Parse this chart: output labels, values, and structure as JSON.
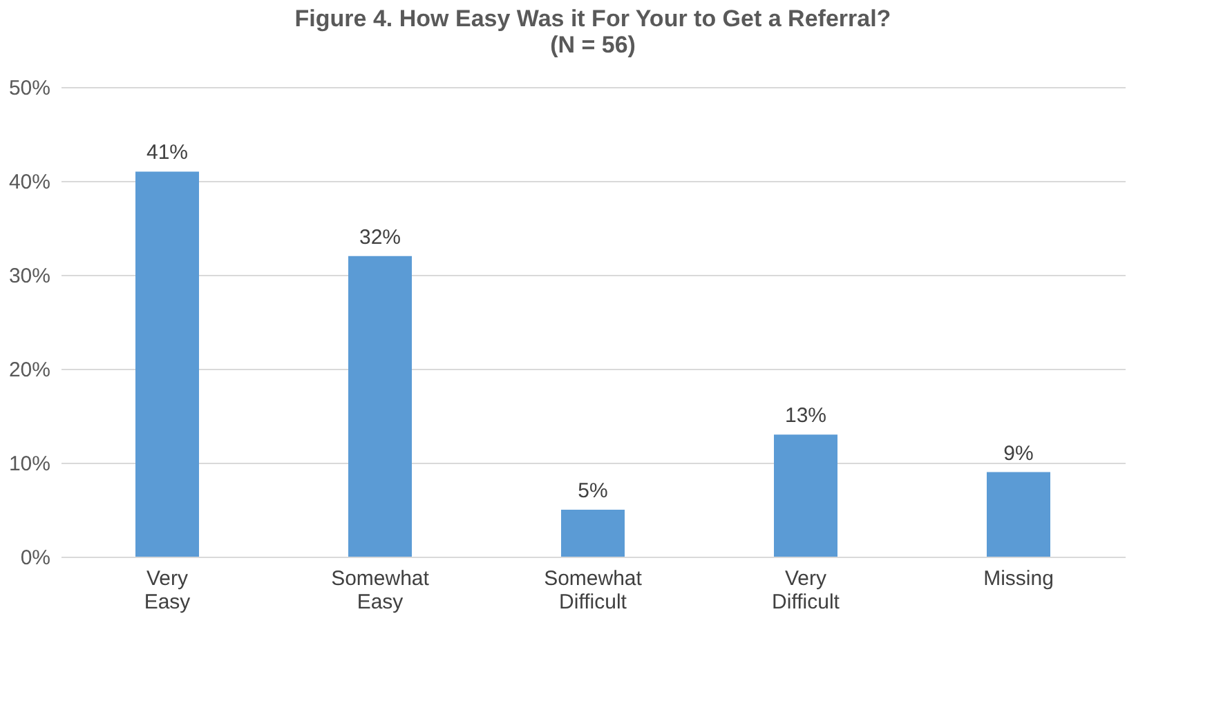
{
  "chart_data": {
    "type": "bar",
    "title": "Figure 4. How Easy Was it For Your to Get a Referral?\n(N = 56)",
    "categories": [
      "Very Easy",
      "Somewhat Easy",
      "Somewhat Difficult",
      "Very Difficult",
      "Missing"
    ],
    "values": [
      41,
      32,
      5,
      13,
      9
    ],
    "value_labels": [
      "41%",
      "32%",
      "5%",
      "13%",
      "9%"
    ],
    "color": "#5b9bd5",
    "ylim": [
      0,
      50
    ],
    "yticks": [
      {
        "value": 0,
        "label": "0%"
      },
      {
        "value": 10,
        "label": "10%"
      },
      {
        "value": 20,
        "label": "20%"
      },
      {
        "value": 30,
        "label": "30%"
      },
      {
        "value": 40,
        "label": "40%"
      },
      {
        "value": 50,
        "label": "50%"
      }
    ],
    "grid": "y"
  }
}
